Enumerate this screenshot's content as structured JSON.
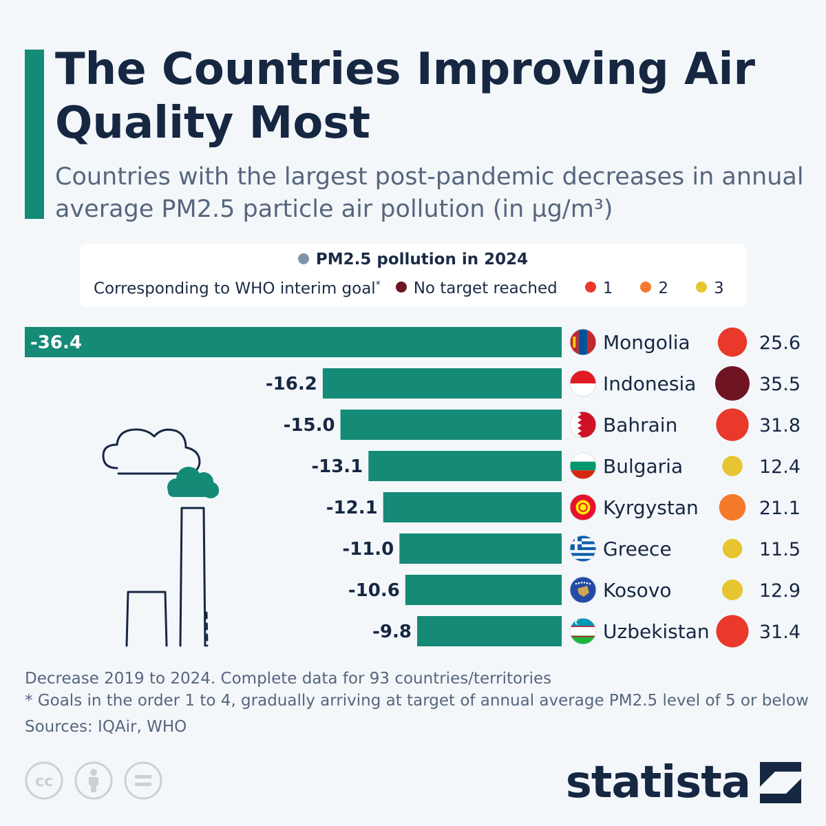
{
  "title": "The Countries Improving Air Quality Most",
  "subtitle": "Countries with the largest post-pandemic decreases in annual average PM2.5 particle air pollution (in µg/m³)",
  "legend": {
    "pm_label": "PM2.5 pollution in 2024",
    "who_label": "Corresponding to WHO interim goal",
    "who_mark": "*",
    "items": [
      {
        "label": "No target reached",
        "color": "#6e1423"
      },
      {
        "label": "1",
        "color": "#e8392a"
      },
      {
        "label": "2",
        "color": "#f57a2b"
      },
      {
        "label": "3",
        "color": "#e7c530"
      }
    ],
    "pm_color": "#7f95a6"
  },
  "chart_data": {
    "type": "bar",
    "orientation": "horizontal",
    "series_name": "Decrease 2019 to 2024",
    "bar_color": "#148a77",
    "categories": [
      "Mongolia",
      "Indonesia",
      "Bahrain",
      "Bulgaria",
      "Kyrgystan",
      "Greece",
      "Kosovo",
      "Uzbekistan"
    ],
    "values": [
      -36.4,
      -16.2,
      -15.0,
      -13.1,
      -12.1,
      -11.0,
      -10.6,
      -9.8
    ],
    "value_labels": [
      "-36.4",
      "-16.2",
      "-15.0",
      "-13.1",
      "-12.1",
      "-11.0",
      "-10.6",
      "-9.8"
    ],
    "pm25_2024": [
      25.6,
      35.5,
      31.8,
      12.4,
      21.1,
      11.5,
      12.9,
      31.4
    ],
    "pm25_labels": [
      "25.6",
      "35.5",
      "31.8",
      "12.4",
      "21.1",
      "11.5",
      "12.9",
      "31.4"
    ],
    "who_goal": [
      "1",
      "none",
      "1",
      "3",
      "2",
      "3",
      "3",
      "1"
    ],
    "flags": [
      "mongolia-flag",
      "indonesia-flag",
      "bahrain-flag",
      "bulgaria-flag",
      "kyrgyzstan-flag",
      "greece-flag",
      "kosovo-flag",
      "uzbekistan-flag"
    ]
  },
  "notes": {
    "line1": "Decrease 2019 to 2024. Complete data for 93 countries/territories",
    "line2": "* Goals in the order 1 to 4, gradually arriving at target of annual average PM2.5 level of 5 or below",
    "sources": "Sources: IQAir, WHO"
  },
  "brand": "statista",
  "license_icons": [
    "cc-icon",
    "attribution-icon",
    "no-derivatives-icon"
  ],
  "license_text": "cc"
}
